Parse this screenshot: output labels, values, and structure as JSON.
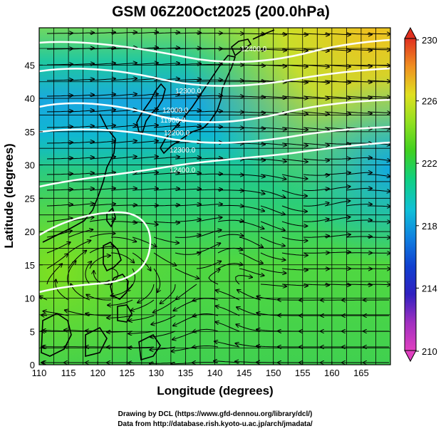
{
  "map": {
    "title": "GSM 06Z20Oct2025 (200.0hPa)",
    "xlabel": "Longitude (degrees)",
    "ylabel": "Latitude  (degrees)",
    "x_ticks": [
      "110",
      "115",
      "120",
      "125",
      "130",
      "135",
      "140",
      "145",
      "150",
      "155",
      "160",
      "165"
    ],
    "y_ticks": [
      "0",
      "5",
      "10",
      "15",
      "20",
      "25",
      "30",
      "35",
      "40",
      "45"
    ],
    "colorbar": {
      "ticks": [
        "210",
        "214",
        "218",
        "222",
        "226",
        "230"
      ],
      "range": [
        210,
        230
      ],
      "colors": [
        "#e040c0",
        "#7030c0",
        "#1030d0",
        "#1080e0",
        "#10c0d0",
        "#10d080",
        "#40d020",
        "#90e020",
        "#e0e020",
        "#f0b020",
        "#f07020",
        "#e03020"
      ]
    },
    "contour_labels": [
      "12300.0",
      "12000.0",
      "11900.0",
      "12400.0",
      "12200.0",
      "12300.0",
      "12400.0"
    ],
    "credits": [
      "Drawing by DCL (https://www.gfd-dennou.org/library/dcl/)",
      "Data from http://database.rish.kyoto-u.ac.jp/arch/jmadata/"
    ]
  }
}
